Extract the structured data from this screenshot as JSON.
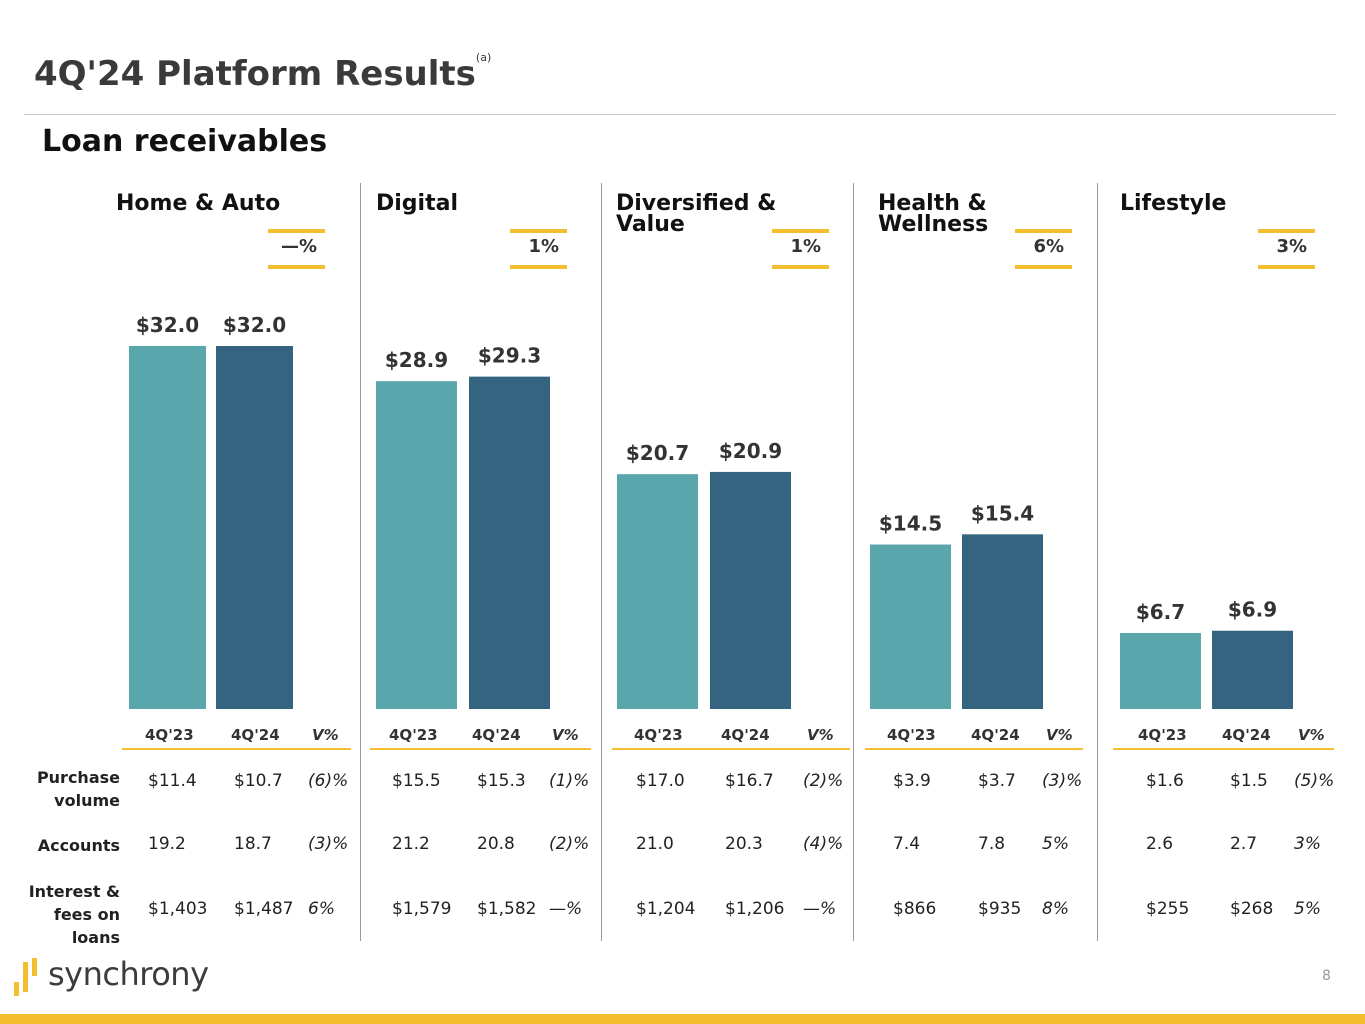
{
  "header": {
    "title": "4Q'24 Platform Results",
    "footnote": "(a)",
    "subtitle": "Loan receivables"
  },
  "colors": {
    "bar_prior": "#5aa6ad",
    "bar_current": "#356480",
    "accent": "#f5be2e"
  },
  "columns": {
    "prior": "4Q'23",
    "current": "4Q'24",
    "variance": "V%"
  },
  "row_labels": {
    "purchase_volume": "Purchase volume",
    "accounts": "Accounts",
    "interest_fees": "Interest & fees on loans"
  },
  "platforms": [
    {
      "name": "Home & Auto",
      "change": "—%",
      "loan_labels": [
        "$32.0",
        "$32.0"
      ],
      "purchase_volume": [
        "$11.4",
        "$10.7",
        "(6)%"
      ],
      "accounts": [
        "19.2",
        "18.7",
        "(3)%"
      ],
      "interest_fees": [
        "$1,403",
        "$1,487",
        "6%"
      ]
    },
    {
      "name": "Digital",
      "change": "1%",
      "loan_labels": [
        "$28.9",
        "$29.3"
      ],
      "purchase_volume": [
        "$15.5",
        "$15.3",
        "(1)%"
      ],
      "accounts": [
        "21.2",
        "20.8",
        "(2)%"
      ],
      "interest_fees": [
        "$1,579",
        "$1,582",
        "—%"
      ]
    },
    {
      "name": "Diversified & Value",
      "change": "1%",
      "loan_labels": [
        "$20.7",
        "$20.9"
      ],
      "purchase_volume": [
        "$17.0",
        "$16.7",
        "(2)%"
      ],
      "accounts": [
        "21.0",
        "20.3",
        "(4)%"
      ],
      "interest_fees": [
        "$1,204",
        "$1,206",
        "—%"
      ]
    },
    {
      "name": "Health & Wellness",
      "change": "6%",
      "loan_labels": [
        "$14.5",
        "$15.4"
      ],
      "purchase_volume": [
        "$3.9",
        "$3.7",
        "(3)%"
      ],
      "accounts": [
        "7.4",
        "7.8",
        "5%"
      ],
      "interest_fees": [
        "$866",
        "$935",
        "8%"
      ]
    },
    {
      "name": "Lifestyle",
      "change": "3%",
      "loan_labels": [
        "$6.7",
        "$6.9"
      ],
      "purchase_volume": [
        "$1.6",
        "$1.5",
        "(5)%"
      ],
      "accounts": [
        "2.6",
        "2.7",
        "3%"
      ],
      "interest_fees": [
        "$255",
        "$268",
        "5%"
      ]
    }
  ],
  "chart_data": {
    "type": "bar",
    "title": "Loan receivables",
    "categories": [
      "Home & Auto",
      "Digital",
      "Diversified & Value",
      "Health & Wellness",
      "Lifestyle"
    ],
    "series": [
      {
        "name": "4Q'23",
        "values": [
          32.0,
          28.9,
          20.7,
          14.5,
          6.7
        ]
      },
      {
        "name": "4Q'24",
        "values": [
          32.0,
          29.3,
          20.9,
          15.4,
          6.9
        ]
      }
    ]
  },
  "footer": {
    "brand": "synchrony",
    "page": "8"
  }
}
